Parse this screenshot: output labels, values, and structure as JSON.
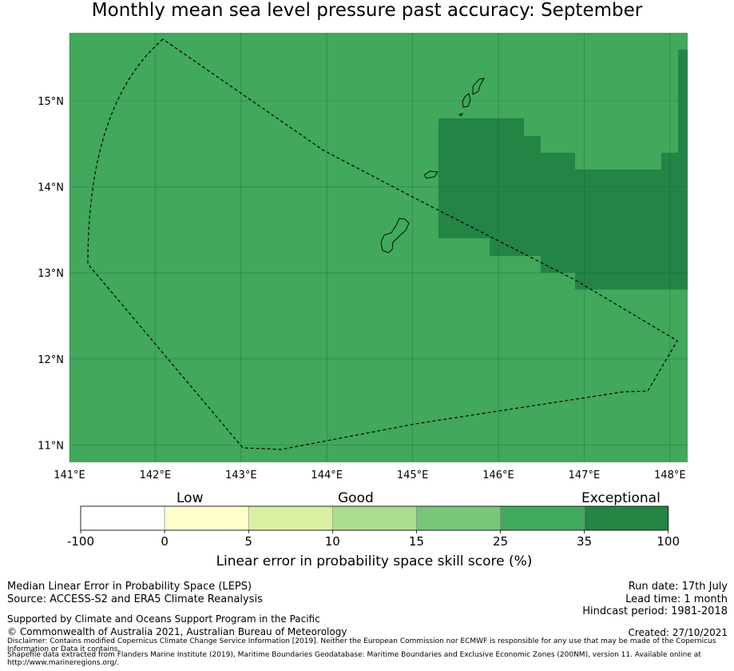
{
  "title": "Monthly mean sea level pressure past accuracy: September",
  "map": {
    "lon_range": [
      141,
      148.2
    ],
    "lat_range": [
      10.8,
      15.8
    ],
    "lon_ticks": [
      "141°E",
      "142°E",
      "143°E",
      "144°E",
      "145°E",
      "146°E",
      "147°E",
      "148°E"
    ],
    "lat_ticks": [
      "15°N",
      "14°N",
      "13°N",
      "12°N",
      "11°N"
    ],
    "base_color": "#41a85c",
    "exceptional_color": "#238446",
    "gridline_color": "#1a5c30"
  },
  "legend": {
    "categories": [
      "Low",
      "Good",
      "Exceptional"
    ],
    "bins": [
      {
        "from": -100,
        "to": 0,
        "color": "#ffffff"
      },
      {
        "from": 0,
        "to": 5,
        "color": "#ffffcc"
      },
      {
        "from": 5,
        "to": 10,
        "color": "#d9f0a3"
      },
      {
        "from": 10,
        "to": 15,
        "color": "#addd8e"
      },
      {
        "from": 15,
        "to": 25,
        "color": "#78c679"
      },
      {
        "from": 25,
        "to": 35,
        "color": "#41ab5d"
      },
      {
        "from": 35,
        "to": 100,
        "color": "#238443"
      }
    ],
    "tick_labels": [
      "-100",
      "0",
      "5",
      "10",
      "15",
      "25",
      "35",
      "100"
    ],
    "label": "Linear error in probability space skill score (%)"
  },
  "footer": {
    "left_line1": "Median Linear Error in Probability Space (LEPS)",
    "left_line2": "Source: ACCESS-S2 and ERA5 Climate Reanalysis",
    "support": "Supported by Climate and Oceans Support Program in the Pacific",
    "copyright": "© Commonwealth of Australia 2021, Australian Bureau of Meteorology",
    "run_date": "Run date: 17th July",
    "lead_time": "Lead time: 1 month",
    "hindcast": "Hindcast period: 1981-2018",
    "created": "Created: 27/10/2021",
    "disclaimer": "Disclaimer: Contains modified Copernicus Climate Change Service Information [2019]. Neither the European Commission nor ECMWF is responsible for any use that may be made of the Copernicus Information or Data it contains.",
    "shapefile": "Shapefile data extracted from Flanders Marine Institute (2019), Maritime Boundaries Geodatabase: Maritime Boundaries and Exclusive Economic Zones (200NM), version 11. Available online at http://www.marineregions.org/."
  }
}
